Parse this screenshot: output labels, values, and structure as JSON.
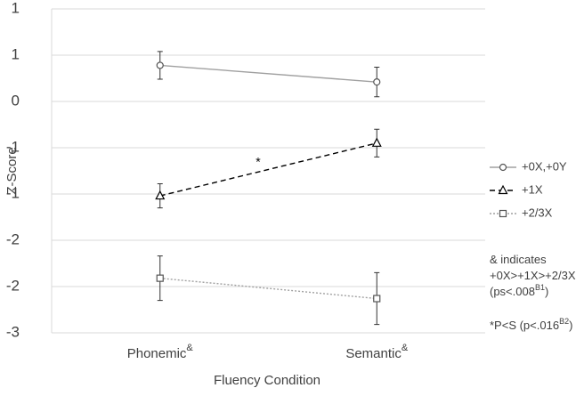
{
  "chart_data": {
    "type": "line",
    "ylabel": "Z-Score",
    "xlabel": "Fluency Condition",
    "categories": [
      "Phonemic",
      "Semantic"
    ],
    "category_superscript": "&",
    "ylim": [
      -2.5,
      1.0
    ],
    "yticks": [
      1,
      {
        "value": 0.5,
        "label": "1"
      },
      0,
      {
        "value": -0.5,
        "label": "-1"
      },
      -1,
      {
        "value": -1.5,
        "label": "-2"
      },
      -2,
      {
        "value": -2.5,
        "label": "-3"
      }
    ],
    "grid": true,
    "series": [
      {
        "name": "+0X,+0Y",
        "color": "#a0a0a0",
        "dash": "solid",
        "marker": "circle",
        "values": [
          0.39,
          0.21
        ],
        "errors": [
          0.15,
          0.16
        ]
      },
      {
        "name": "+1X",
        "color": "#000000",
        "dash": "dashed",
        "marker": "triangle",
        "values": [
          -1.02,
          -0.45
        ],
        "errors": [
          0.13,
          0.15
        ]
      },
      {
        "name": "+2/3X",
        "color": "#a0a0a0",
        "dash": "dotted",
        "marker": "square",
        "values": [
          -1.91,
          -2.13
        ],
        "errors": [
          0.24,
          0.28
        ]
      }
    ],
    "annotation": "*",
    "notes": [
      {
        "text": "& indicates"
      },
      {
        "text": "+0X>+1X>+2/3X"
      },
      {
        "text": "(ps<.008",
        "sup": "B1",
        "end": ")"
      },
      {
        "text": "*P<S (p<.016",
        "sup": "B2",
        "end": ")"
      }
    ]
  }
}
